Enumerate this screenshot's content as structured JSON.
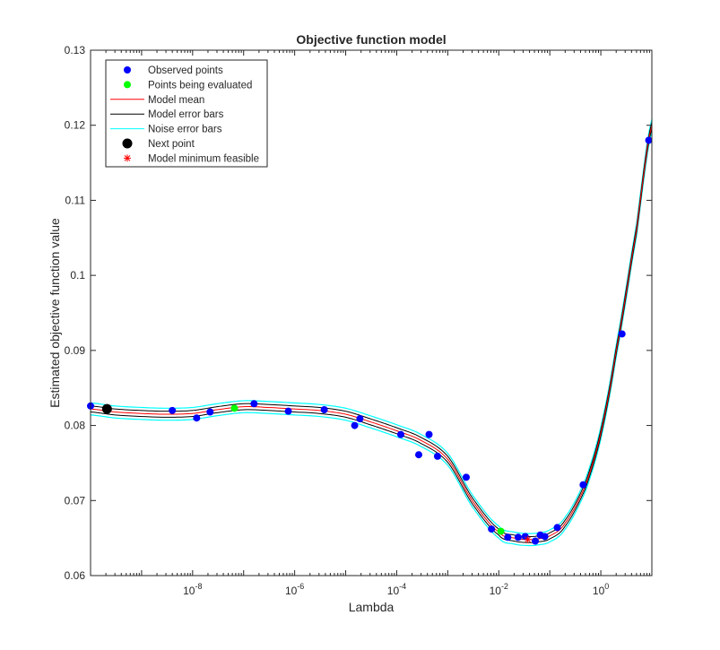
{
  "chart_data": {
    "type": "line",
    "title": "Objective function model",
    "xlabel": "Lambda",
    "ylabel": "Estimated objective function value",
    "x_scale": "log10",
    "xlim": [
      1e-10,
      10
    ],
    "ylim": [
      0.06,
      0.13
    ],
    "y_ticks": [
      "0.06",
      "0.07",
      "0.08",
      "0.09",
      "0.1",
      "0.11",
      "0.12",
      "0.13"
    ],
    "x_ticks": [
      {
        "base": "10",
        "exp": "-8"
      },
      {
        "base": "10",
        "exp": "-6"
      },
      {
        "base": "10",
        "exp": "-4"
      },
      {
        "base": "10",
        "exp": "-2"
      },
      {
        "base": "10",
        "exp": "0"
      }
    ],
    "x_tick_values": [
      1e-08,
      1e-06,
      0.0001,
      0.01,
      1
    ],
    "grid": false,
    "legend_position": "top-left",
    "legend": [
      {
        "label": "Observed points",
        "marker": "dot",
        "color": "#0000ff"
      },
      {
        "label": "Points being evaluated",
        "marker": "dot",
        "color": "#00ff00"
      },
      {
        "label": "Model mean",
        "marker": "line",
        "color": "#ff0000"
      },
      {
        "label": "Model error bars",
        "marker": "line",
        "color": "#000000"
      },
      {
        "label": "Noise error bars",
        "marker": "line",
        "color": "#00ffff"
      },
      {
        "label": "Next point",
        "marker": "bigdot",
        "color": "#000000"
      },
      {
        "label": "Model minimum feasible",
        "marker": "star",
        "color": "#ff0000"
      }
    ],
    "model_mean": {
      "x": [
        1e-10,
        3e-10,
        1e-09,
        3e-09,
        1e-08,
        3e-08,
        1e-07,
        3e-07,
        1e-06,
        3e-06,
        1e-05,
        3e-05,
        0.0001,
        0.0003,
        0.001,
        0.003,
        0.01,
        0.02,
        0.04,
        0.06,
        0.1,
        0.2,
        0.5,
        1,
        2,
        5,
        10
      ],
      "y": [
        0.0822,
        0.0818,
        0.0816,
        0.0815,
        0.0816,
        0.0821,
        0.0825,
        0.0824,
        0.0822,
        0.082,
        0.0815,
        0.0805,
        0.0793,
        0.078,
        0.0755,
        0.07,
        0.0658,
        0.065,
        0.0648,
        0.0649,
        0.0653,
        0.067,
        0.072,
        0.079,
        0.09,
        0.106,
        0.12
      ]
    },
    "model_error_halfwidth": 0.0004,
    "noise_error_halfwidth": 0.0008,
    "observed_points": [
      {
        "x": 1e-10,
        "y": 0.0826
      },
      {
        "x": 4e-09,
        "y": 0.082
      },
      {
        "x": 1.2e-08,
        "y": 0.081
      },
      {
        "x": 2.2e-08,
        "y": 0.0818
      },
      {
        "x": 1.6e-07,
        "y": 0.0829
      },
      {
        "x": 7.5e-07,
        "y": 0.0819
      },
      {
        "x": 3.8e-06,
        "y": 0.0821
      },
      {
        "x": 1.5e-05,
        "y": 0.08
      },
      {
        "x": 1.9e-05,
        "y": 0.0809
      },
      {
        "x": 0.00012,
        "y": 0.0788
      },
      {
        "x": 0.00027,
        "y": 0.0761
      },
      {
        "x": 0.00043,
        "y": 0.0788
      },
      {
        "x": 0.00063,
        "y": 0.0759
      },
      {
        "x": 0.0023,
        "y": 0.0731
      },
      {
        "x": 0.0072,
        "y": 0.0662
      },
      {
        "x": 0.015,
        "y": 0.0651
      },
      {
        "x": 0.024,
        "y": 0.0651
      },
      {
        "x": 0.033,
        "y": 0.0652
      },
      {
        "x": 0.052,
        "y": 0.0646
      },
      {
        "x": 0.065,
        "y": 0.0654
      },
      {
        "x": 0.08,
        "y": 0.0652
      },
      {
        "x": 0.14,
        "y": 0.0664
      },
      {
        "x": 0.45,
        "y": 0.0721
      },
      {
        "x": 2.6,
        "y": 0.0922
      },
      {
        "x": 8.7,
        "y": 0.118
      }
    ],
    "evaluating_points": [
      {
        "x": 6.6e-08,
        "y": 0.0823
      },
      {
        "x": 0.011,
        "y": 0.0659
      }
    ],
    "next_point": {
      "x": 2.1e-10,
      "y": 0.0822
    },
    "model_minimum": {
      "x": 0.037,
      "y": 0.0648
    },
    "colors": {
      "observed": "#0000ff",
      "evaluating": "#00ff00",
      "mean": "#ff0000",
      "model_err": "#000000",
      "noise_err": "#00ffff",
      "next": "#000000",
      "minimum": "#ff0000",
      "axis": "#262626"
    }
  }
}
